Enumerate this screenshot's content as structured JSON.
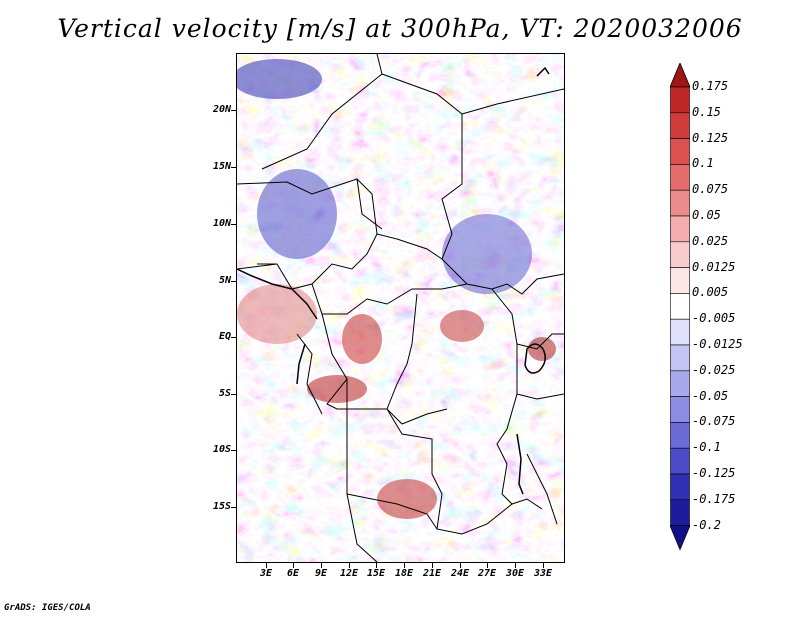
{
  "title": "Vertical velocity [m/s] at 300hPa, VT: 2020032006",
  "footer": "GrADS: IGES/COLA",
  "map": {
    "lat_labels": [
      "20N",
      "15N",
      "10N",
      "5N",
      "EQ",
      "5S",
      "10S",
      "15S"
    ],
    "lon_labels": [
      "3E",
      "6E",
      "9E",
      "12E",
      "15E",
      "18E",
      "21E",
      "24E",
      "27E",
      "30E",
      "33E"
    ]
  },
  "colorbar": {
    "labels": [
      "0.175",
      "0.15",
      "0.125",
      "0.1",
      "0.075",
      "0.05",
      "0.025",
      "0.0125",
      "0.005",
      "-0.005",
      "-0.0125",
      "-0.025",
      "-0.05",
      "-0.075",
      "-0.1",
      "-0.125",
      "-0.175",
      "-0.2"
    ],
    "colors": [
      "#a01414",
      "#c02828",
      "#d03c3c",
      "#dc5050",
      "#e46c6c",
      "#ec8c8c",
      "#f4acac",
      "#f8cccc",
      "#fce6e6",
      "#ffffff",
      "#e0e0fc",
      "#c4c4f4",
      "#a8a8ec",
      "#8c8ce4",
      "#6c6cd8",
      "#4c4cc8",
      "#3030b4",
      "#1c1c9c",
      "#10108a"
    ]
  }
}
